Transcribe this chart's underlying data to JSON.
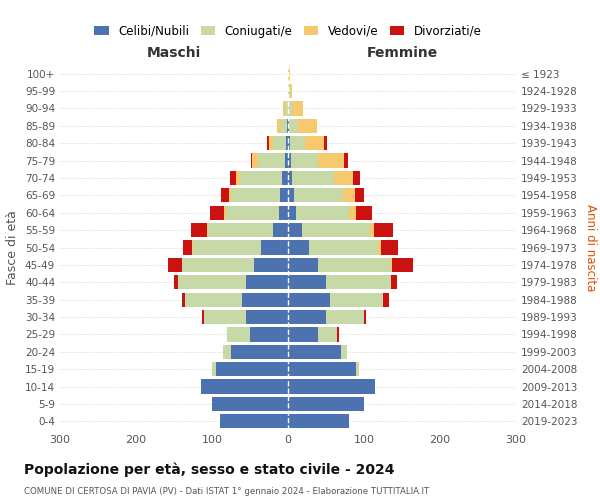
{
  "age_groups": [
    "0-4",
    "5-9",
    "10-14",
    "15-19",
    "20-24",
    "25-29",
    "30-34",
    "35-39",
    "40-44",
    "45-49",
    "50-54",
    "55-59",
    "60-64",
    "65-69",
    "70-74",
    "75-79",
    "80-84",
    "85-89",
    "90-94",
    "95-99",
    "100+"
  ],
  "birth_years": [
    "2019-2023",
    "2014-2018",
    "2009-2013",
    "2004-2008",
    "1999-2003",
    "1994-1998",
    "1989-1993",
    "1984-1988",
    "1979-1983",
    "1974-1978",
    "1969-1973",
    "1964-1968",
    "1959-1963",
    "1954-1958",
    "1949-1953",
    "1944-1948",
    "1939-1943",
    "1934-1938",
    "1929-1933",
    "1924-1928",
    "≤ 1923"
  ],
  "colors": {
    "celibe": "#4c72b0",
    "coniugato": "#c8d9a8",
    "vedovo": "#f7c96e",
    "divorziato": "#cc1111"
  },
  "maschi": {
    "celibe": [
      90,
      100,
      115,
      95,
      75,
      50,
      55,
      60,
      55,
      45,
      35,
      20,
      12,
      10,
      8,
      4,
      2,
      1,
      0,
      0,
      0
    ],
    "coniugato": [
      0,
      0,
      0,
      5,
      10,
      30,
      55,
      75,
      90,
      95,
      90,
      85,
      70,
      65,
      55,
      35,
      18,
      8,
      4,
      0,
      0
    ],
    "vedovo": [
      0,
      0,
      0,
      0,
      0,
      0,
      0,
      0,
      0,
      0,
      1,
      2,
      2,
      3,
      5,
      8,
      5,
      5,
      2,
      0,
      0
    ],
    "divorziato": [
      0,
      0,
      0,
      0,
      0,
      0,
      3,
      5,
      5,
      18,
      12,
      20,
      18,
      10,
      8,
      2,
      3,
      0,
      0,
      0,
      0
    ]
  },
  "femmine": {
    "celibe": [
      80,
      100,
      115,
      90,
      70,
      40,
      50,
      55,
      50,
      40,
      28,
      18,
      10,
      8,
      5,
      4,
      2,
      1,
      0,
      0,
      0
    ],
    "coniugato": [
      0,
      0,
      0,
      3,
      8,
      25,
      50,
      70,
      85,
      95,
      90,
      90,
      70,
      65,
      55,
      35,
      20,
      12,
      5,
      2,
      0
    ],
    "vedovo": [
      0,
      0,
      0,
      0,
      0,
      0,
      0,
      0,
      1,
      2,
      5,
      5,
      10,
      15,
      25,
      35,
      25,
      25,
      15,
      3,
      2
    ],
    "divorziato": [
      0,
      0,
      0,
      0,
      0,
      2,
      3,
      8,
      8,
      28,
      22,
      25,
      20,
      12,
      10,
      5,
      4,
      0,
      0,
      0,
      0
    ]
  },
  "xlim": 300,
  "title": "Popolazione per età, sesso e stato civile - 2024",
  "subtitle": "COMUNE DI CERTOSA DI PAVIA (PV) - Dati ISTAT 1° gennaio 2024 - Elaborazione TUTTITALIA.IT",
  "ylabel_left": "Fasce di età",
  "ylabel_right": "Anni di nascita",
  "xlabel_maschi": "Maschi",
  "xlabel_femmine": "Femmine",
  "legend_labels": [
    "Celibi/Nubili",
    "Coniugati/e",
    "Vedovi/e",
    "Divorziati/e"
  ]
}
